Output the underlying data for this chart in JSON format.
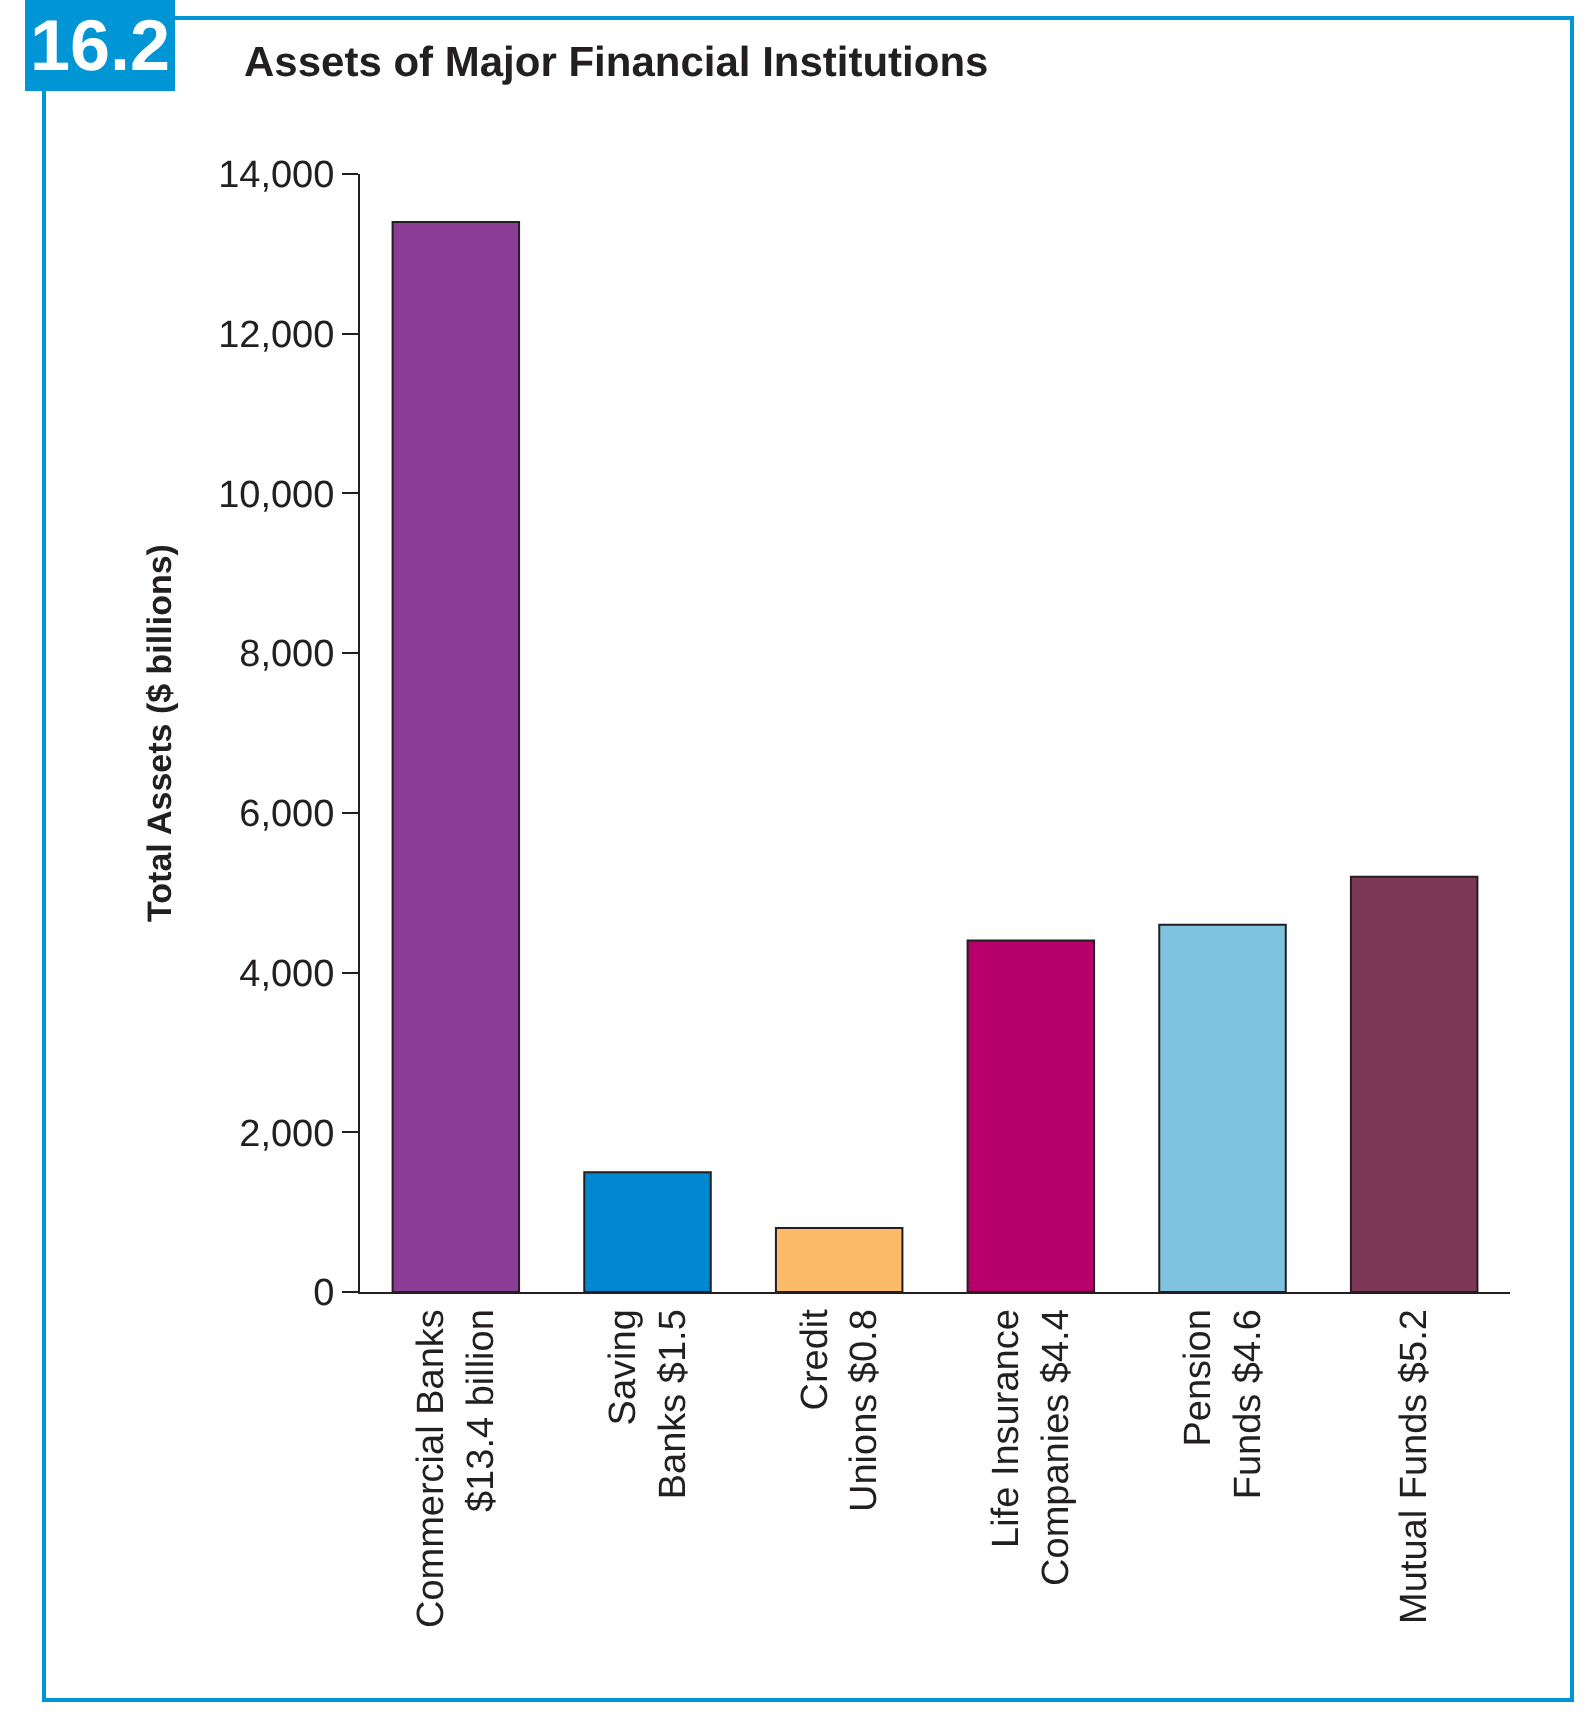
{
  "chart_data": {
    "type": "bar",
    "title": "Assets of Major Financial Institutions",
    "ylabel": "Total Assets ($ billions)",
    "annotations": [
      "16.2"
    ],
    "categories": [
      "Commercial Banks\n$13.4 billion",
      "Saving\nBanks $1.5",
      "Credit\nUnions $0.8",
      "Life Insurance\nCompanies $4.4",
      "Pension\nFunds $4.6",
      "Mutual Funds $5.2"
    ],
    "values": [
      13400,
      1500,
      800,
      4400,
      4600,
      5200
    ],
    "colors": [
      "#8b3d96",
      "#0087cf",
      "#fbbb68",
      "#b8006b",
      "#80c3e0",
      "#7d3858"
    ],
    "ylim": [
      0,
      14000
    ],
    "yticks": [
      0,
      {
        "value": 2000,
        "label": "2,000"
      },
      {
        "value": 4000,
        "label": "4,000"
      },
      {
        "value": 6000,
        "label": "6,000"
      },
      {
        "value": 8000,
        "label": "8,000"
      },
      {
        "value": 10000,
        "label": "10,000"
      },
      {
        "value": 12000,
        "label": "12,000"
      },
      {
        "value": 14000,
        "label": "14,000"
      }
    ],
    "legend": false
  }
}
